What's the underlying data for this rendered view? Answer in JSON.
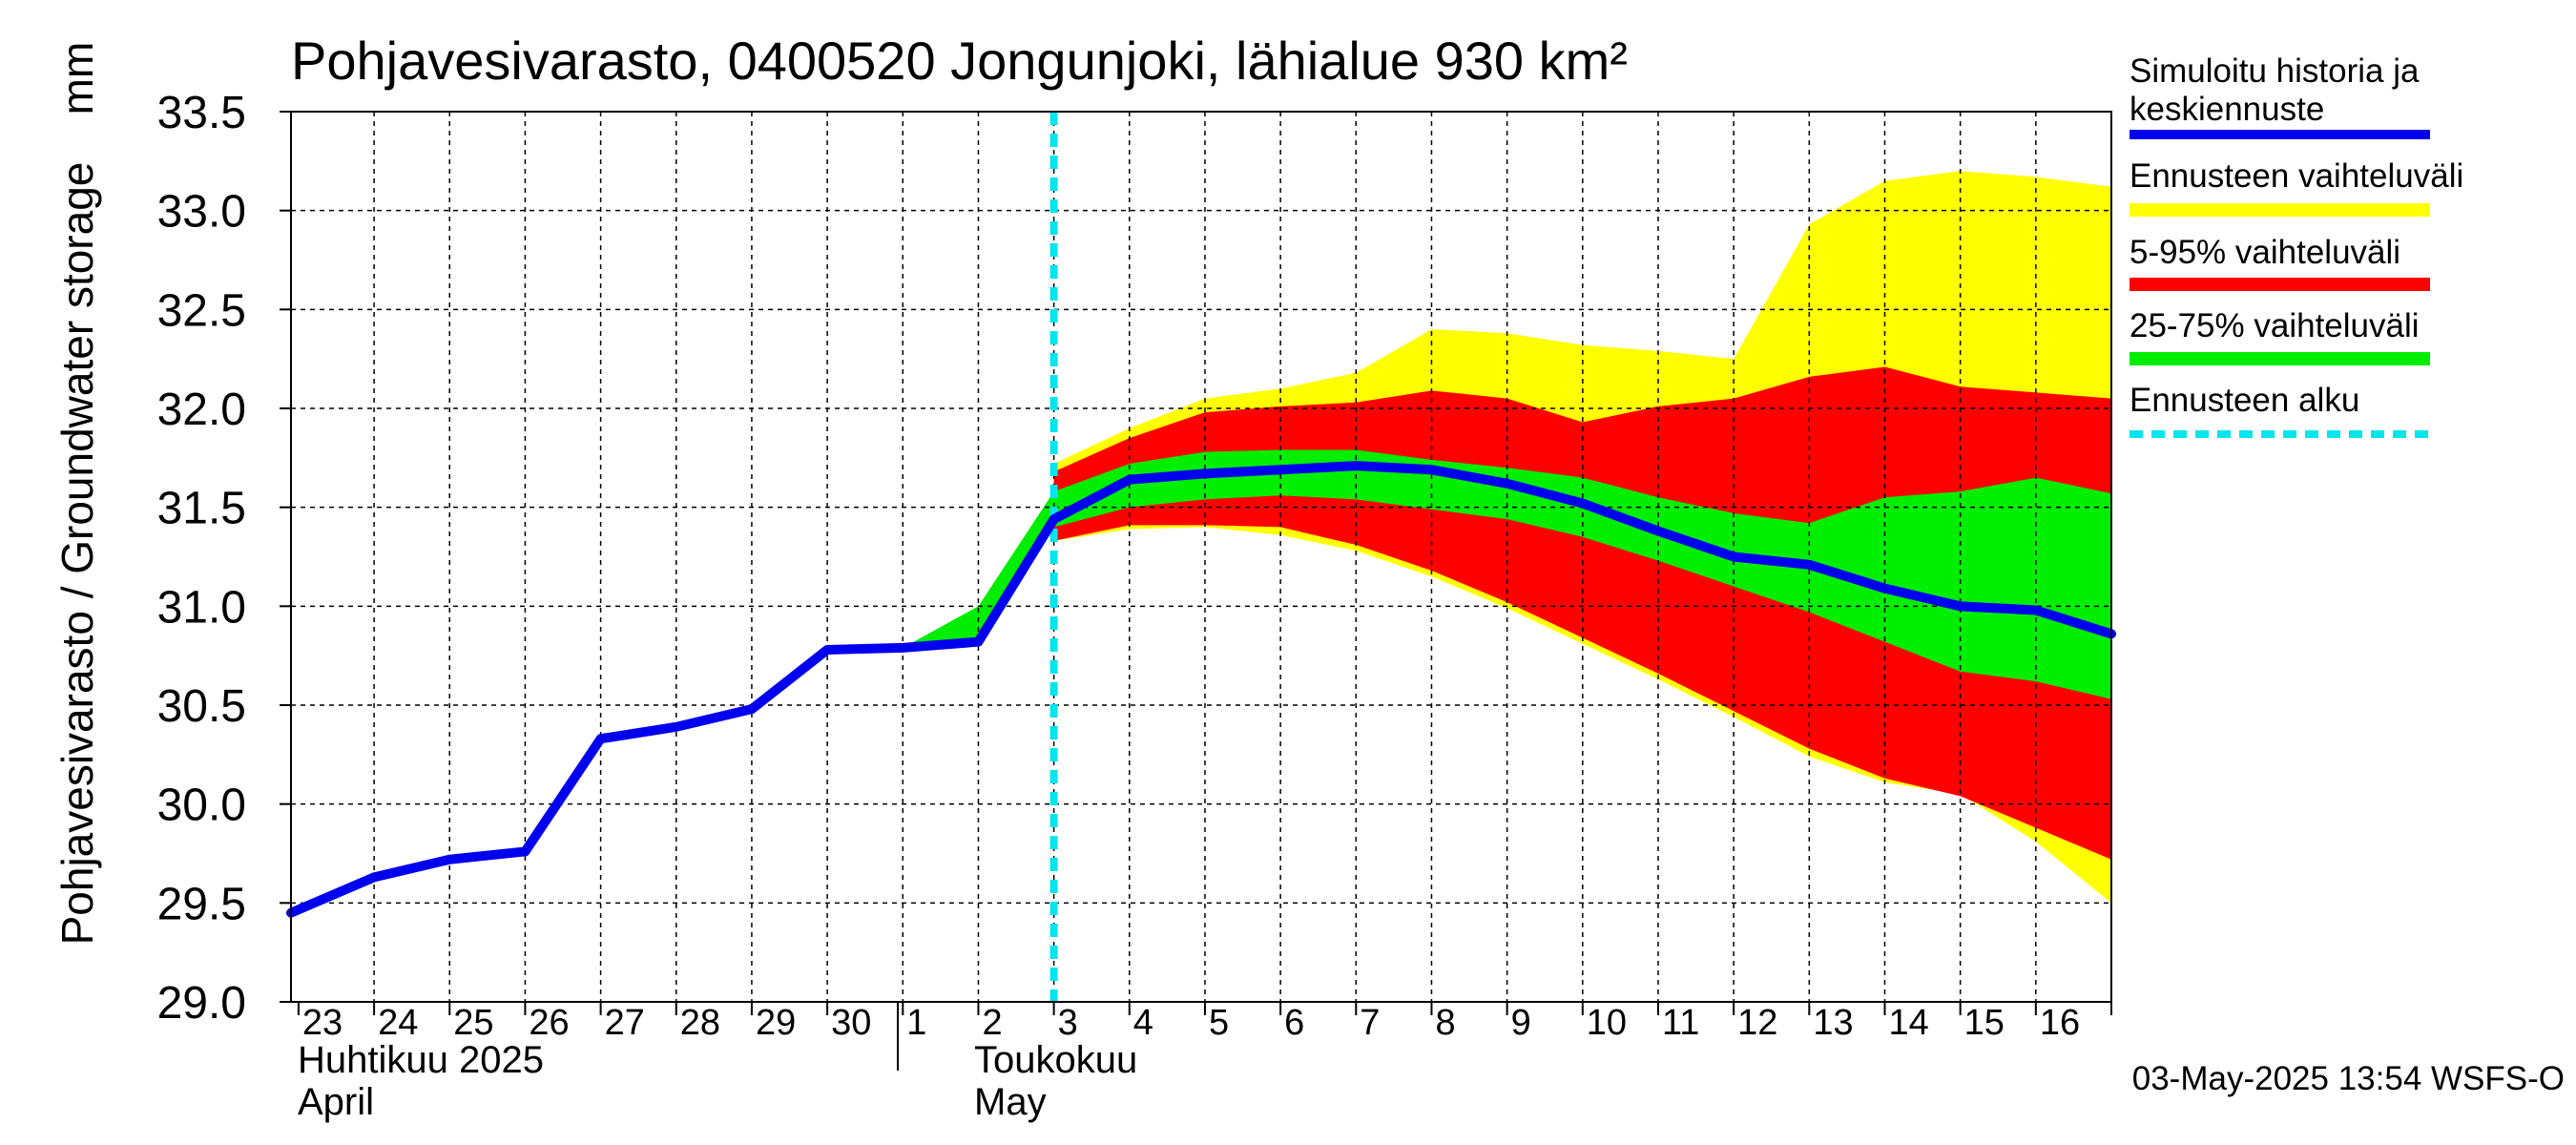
{
  "chart_data": {
    "type": "area",
    "title": "Pohjavesivarasto, 0400520 Jongunjoki, lähialue 930 km²",
    "ylabel": "Pohjavesivarasto / Groundwater storage",
    "yunit": "mm",
    "ylim": [
      29.0,
      33.5
    ],
    "yticks": [
      "29.0",
      "29.5",
      "30.0",
      "30.5",
      "31.0",
      "31.5",
      "32.0",
      "32.5",
      "33.0",
      "33.5"
    ],
    "x_range": [
      -0.1,
      24.0
    ],
    "day_labels": [
      "23",
      "24",
      "25",
      "26",
      "27",
      "28",
      "29",
      "30",
      "1",
      "2",
      "3",
      "4",
      "5",
      "6",
      "7",
      "8",
      "9",
      "10",
      "11",
      "12",
      "13",
      "14",
      "15",
      "16"
    ],
    "month_labels": {
      "april_fi": "Huhtikuu  2025",
      "april_en": "April",
      "may_fi": "Toukokuu",
      "may_en": "May"
    },
    "forecast_start_x": 10.0,
    "grid": true,
    "legend_position": "right",
    "footer": "03-May-2025 13:54 WSFS-O",
    "legend": [
      {
        "key": "history",
        "text": "Simuloitu historia ja keskiennuste",
        "color": "#0000ee"
      },
      {
        "key": "range",
        "text": "Ennusteen vaihteluväli",
        "color": "#ffff00"
      },
      {
        "key": "p5_95",
        "text": "5-95% vaihteluväli",
        "color": "#ff0000"
      },
      {
        "key": "p25_75",
        "text": "25-75% vaihteluväli",
        "color": "#00ee00"
      },
      {
        "key": "start",
        "text": "Ennusteen alku",
        "color": "#00e5ee"
      }
    ],
    "series": {
      "history": {
        "x": [
          -0.1,
          1,
          2,
          3,
          4,
          5,
          6,
          7,
          8,
          9,
          10,
          11,
          12,
          13,
          14,
          15,
          16,
          17,
          18,
          19,
          20,
          21,
          22,
          23,
          24
        ],
        "y": [
          29.45,
          29.63,
          29.72,
          29.76,
          30.33,
          30.39,
          30.48,
          30.78,
          30.79,
          30.82,
          31.44,
          31.64,
          31.67,
          31.69,
          31.71,
          31.69,
          31.62,
          31.52,
          31.38,
          31.25,
          31.21,
          31.09,
          31.0,
          30.98,
          30.86
        ]
      },
      "range": {
        "x": [
          10,
          11,
          12,
          13,
          14,
          15,
          16,
          17,
          18,
          19,
          20,
          21,
          22,
          23,
          24
        ],
        "upper": [
          31.72,
          31.9,
          32.05,
          32.1,
          32.18,
          32.4,
          32.38,
          32.32,
          32.29,
          32.25,
          32.93,
          33.15,
          33.2,
          33.17,
          33.12
        ],
        "lower": [
          31.33,
          31.39,
          31.4,
          31.36,
          31.28,
          31.15,
          30.99,
          30.81,
          30.63,
          30.44,
          30.24,
          30.11,
          30.05,
          29.81,
          29.5
        ]
      },
      "p5_95": {
        "x": [
          10,
          11,
          12,
          13,
          14,
          15,
          16,
          17,
          18,
          19,
          20,
          21,
          22,
          23,
          24
        ],
        "upper": [
          31.68,
          31.85,
          31.98,
          32.01,
          32.03,
          32.09,
          32.05,
          31.93,
          32.01,
          32.05,
          32.16,
          32.21,
          32.11,
          32.08,
          32.05
        ],
        "lower": [
          31.33,
          31.41,
          31.41,
          31.4,
          31.31,
          31.18,
          31.02,
          30.84,
          30.66,
          30.47,
          30.28,
          30.13,
          30.04,
          29.88,
          29.72
        ]
      },
      "p25_75": {
        "x": [
          8,
          9,
          10,
          11,
          12,
          13,
          14,
          15,
          16,
          17,
          18,
          19,
          20,
          21,
          22,
          23,
          24
        ],
        "upper": [
          30.79,
          31.0,
          31.58,
          31.72,
          31.78,
          31.79,
          31.79,
          31.74,
          31.7,
          31.65,
          31.55,
          31.47,
          31.42,
          31.55,
          31.58,
          31.65,
          31.57
        ],
        "lower": [
          30.79,
          30.82,
          31.4,
          31.5,
          31.54,
          31.56,
          31.54,
          31.49,
          31.44,
          31.35,
          31.23,
          31.1,
          30.97,
          30.82,
          30.67,
          30.62,
          30.53
        ]
      }
    }
  }
}
